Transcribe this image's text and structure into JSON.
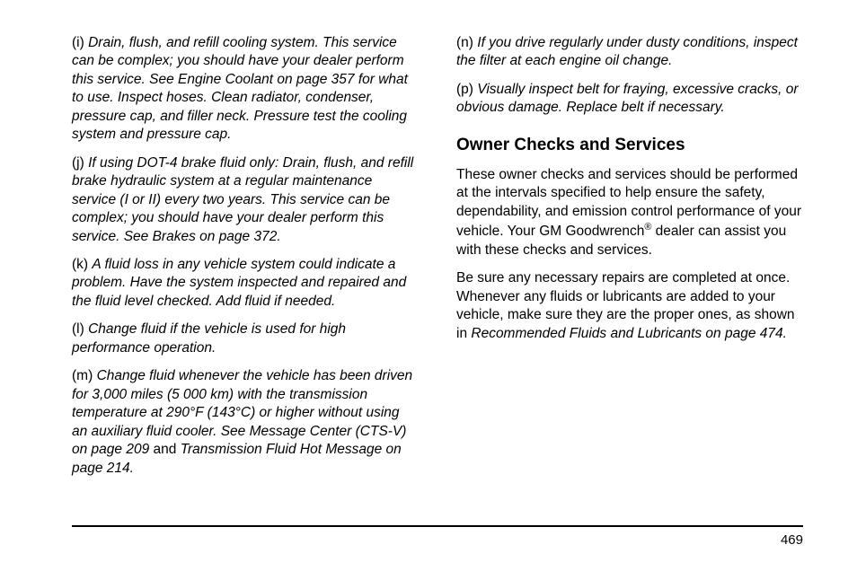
{
  "left": {
    "i": {
      "label": "(i)",
      "text": "Drain, flush, and refill cooling system. This service can be complex; you should have your dealer perform this service. See Engine Coolant on page 357 for what to use. Inspect hoses. Clean radiator, condenser, pressure cap, and filler neck. Pressure test the cooling system and pressure cap."
    },
    "j": {
      "label": "(j)",
      "text": "If using DOT-4 brake fluid only: Drain, flush, and refill brake hydraulic system at a regular maintenance service (I or II) every two years. This service can be complex; you should have your dealer perform this service. See Brakes on page 372."
    },
    "k": {
      "label": "(k)",
      "text": "A fluid loss in any vehicle system could indicate a problem. Have the system inspected and repaired and the fluid level checked. Add fluid if needed."
    },
    "l": {
      "label": "(l)",
      "text": "Change fluid if the vehicle is used for high performance operation."
    },
    "m": {
      "label": "(m)",
      "text_a": "Change fluid whenever the vehicle has been driven for 3,000 miles (5 000 km) with the transmission temperature at 290°F (143°C) or higher without using an auxiliary fluid cooler. See Message Center (CTS-V) on page 209",
      "text_and": " and ",
      "text_b": "Transmission Fluid Hot Message on page 214."
    }
  },
  "right": {
    "n": {
      "label": "(n)",
      "text": "If you drive regularly under dusty conditions, inspect the filter at each engine oil change."
    },
    "p": {
      "label": "(p)",
      "text": "Visually inspect belt for fraying, excessive cracks, or obvious damage. Replace belt if necessary."
    },
    "heading": "Owner Checks and Services",
    "para1_a": "These owner checks and services should be performed at the intervals specified to help ensure the safety, dependability, and emission control performance of your vehicle. Your GM Goodwrench",
    "para1_b": " dealer can assist you with these checks and services.",
    "para2_a": "Be sure any necessary repairs are completed at once. Whenever any fluids or lubricants are added to your vehicle, make sure they are the proper ones, as shown in ",
    "para2_b": "Recommended Fluids and Lubricants on page 474."
  },
  "page_number": "469"
}
